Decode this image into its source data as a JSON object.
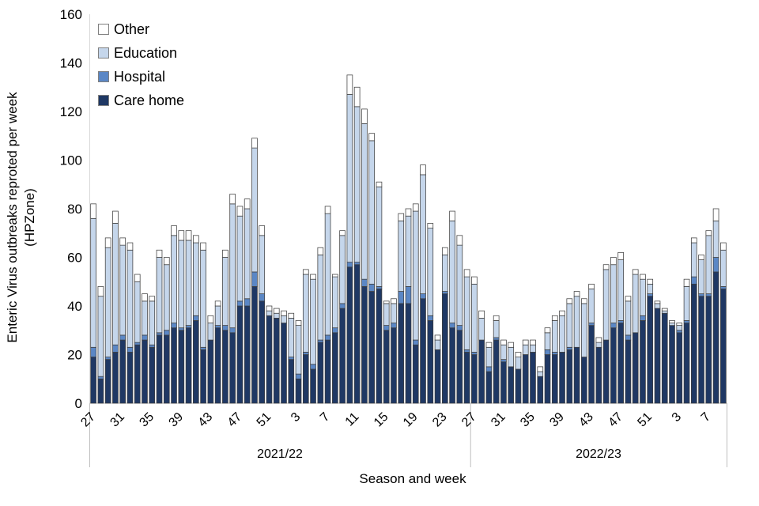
{
  "figure": {
    "y_axis_title_line1": "Enteric Virus outbreaks reproted per week",
    "y_axis_title_line2": "(HPZone)",
    "x_axis_title": "Season and week"
  },
  "chart_data": {
    "type": "bar",
    "stacked": true,
    "title": "",
    "xlabel": "Season and week",
    "ylabel": "Enteric Virus outbreaks reproted per week (HPZone)",
    "ylim": [
      0,
      160
    ],
    "ytick_step": 20,
    "grid": false,
    "legend_position": "top-left-inside",
    "x_label_every": 4,
    "segment_border_color": "#3F3F3F",
    "axis_line_color": "#BFBFBF",
    "legend": [
      {
        "label": "Other",
        "color": "#FFFFFF"
      },
      {
        "label": "Education",
        "color": "#C5D6EB"
      },
      {
        "label": "Hospital",
        "color": "#5B87C5"
      },
      {
        "label": "Care home",
        "color": "#1F3864"
      }
    ],
    "seasons": [
      {
        "label": "2021/22",
        "start_index": 0,
        "end_index": 51
      },
      {
        "label": "2022/23",
        "start_index": 52,
        "end_index": 86
      }
    ],
    "weeks": [
      27,
      28,
      29,
      30,
      31,
      32,
      33,
      34,
      35,
      36,
      37,
      38,
      39,
      40,
      41,
      42,
      43,
      44,
      45,
      46,
      47,
      48,
      49,
      50,
      51,
      52,
      1,
      2,
      3,
      4,
      5,
      6,
      7,
      8,
      9,
      10,
      11,
      12,
      13,
      14,
      15,
      16,
      17,
      18,
      19,
      20,
      21,
      22,
      23,
      24,
      25,
      26,
      27,
      28,
      29,
      30,
      31,
      32,
      33,
      34,
      35,
      36,
      37,
      38,
      39,
      40,
      41,
      42,
      43,
      44,
      45,
      46,
      47,
      48,
      49,
      50,
      51,
      52,
      1,
      2,
      3,
      4,
      5,
      6,
      7,
      8,
      9
    ],
    "series": [
      {
        "name": "Care home",
        "color": "#1F3864",
        "values": [
          19,
          10,
          18,
          21,
          26,
          21,
          24,
          26,
          23,
          28,
          28,
          31,
          30,
          31,
          34,
          22,
          26,
          31,
          30,
          29,
          40,
          40,
          48,
          42,
          36,
          35,
          33,
          18,
          10,
          20,
          14,
          25,
          26,
          29,
          39,
          56,
          57,
          48,
          46,
          47,
          30,
          31,
          41,
          41,
          24,
          43,
          34,
          22,
          45,
          31,
          30,
          21,
          20,
          26,
          13,
          26,
          17,
          15,
          14,
          20,
          21,
          11,
          20,
          20,
          21,
          22,
          23,
          19,
          32,
          23,
          26,
          31,
          33,
          26,
          29,
          34,
          44,
          39,
          37,
          32,
          29,
          33,
          49,
          44,
          44,
          54,
          47
        ]
      },
      {
        "name": "Hospital",
        "color": "#5B87C5",
        "values": [
          4,
          1,
          1,
          3,
          2,
          2,
          1,
          2,
          1,
          1,
          2,
          2,
          1,
          1,
          2,
          1,
          0,
          1,
          2,
          2,
          2,
          3,
          6,
          3,
          0,
          0,
          0,
          1,
          2,
          1,
          2,
          1,
          2,
          2,
          2,
          2,
          1,
          3,
          3,
          1,
          2,
          2,
          5,
          7,
          2,
          2,
          2,
          0,
          1,
          2,
          2,
          1,
          1,
          0,
          2,
          1,
          1,
          0,
          0,
          0,
          0,
          0,
          2,
          1,
          0,
          1,
          0,
          0,
          1,
          0,
          0,
          2,
          1,
          2,
          0,
          2,
          1,
          0,
          0,
          0,
          1,
          1,
          3,
          1,
          1,
          6,
          1
        ]
      },
      {
        "name": "Education",
        "color": "#C5D6EB",
        "values": [
          53,
          33,
          45,
          50,
          37,
          40,
          25,
          14,
          18,
          31,
          27,
          36,
          36,
          35,
          30,
          40,
          7,
          8,
          28,
          51,
          35,
          37,
          51,
          24,
          2,
          2,
          3,
          16,
          20,
          32,
          35,
          35,
          50,
          21,
          28,
          69,
          64,
          64,
          59,
          41,
          9,
          8,
          29,
          29,
          53,
          49,
          36,
          4,
          15,
          42,
          33,
          30,
          28,
          9,
          8,
          7,
          6,
          8,
          5,
          4,
          3,
          2,
          7,
          13,
          15,
          18,
          21,
          22,
          14,
          2,
          29,
          24,
          25,
          14,
          24,
          15,
          4,
          2,
          1,
          1,
          2,
          14,
          14,
          14,
          24,
          15,
          15
        ]
      },
      {
        "name": "Other",
        "color": "#FFFFFF",
        "values": [
          6,
          4,
          4,
          5,
          3,
          3,
          3,
          3,
          2,
          3,
          3,
          4,
          4,
          4,
          3,
          3,
          3,
          2,
          3,
          4,
          4,
          4,
          4,
          4,
          2,
          2,
          2,
          2,
          2,
          2,
          2,
          3,
          3,
          1,
          2,
          8,
          8,
          6,
          3,
          2,
          1,
          2,
          3,
          3,
          3,
          4,
          2,
          2,
          3,
          4,
          4,
          3,
          3,
          3,
          2,
          2,
          2,
          2,
          2,
          2,
          2,
          2,
          2,
          2,
          2,
          2,
          2,
          2,
          2,
          2,
          2,
          3,
          3,
          2,
          2,
          2,
          2,
          1,
          1,
          1,
          1,
          3,
          2,
          2,
          2,
          5,
          3
        ]
      }
    ]
  }
}
